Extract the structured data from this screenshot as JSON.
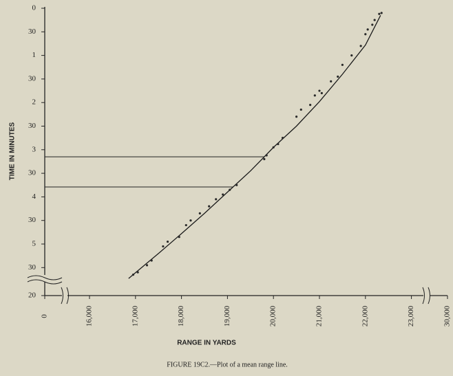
{
  "chart_data": {
    "type": "scatter",
    "caption": "FIGURE 19C2.—Plot of a mean range line.",
    "x_label": "RANGE IN YARDS",
    "y_label": "TIME IN MINUTES",
    "xlim": [
      0,
      30000
    ],
    "ylim": [
      0,
      20
    ],
    "xticks": [
      0,
      {
        "value": 16000,
        "label": "16,000"
      },
      {
        "value": 17000,
        "label": "17,000"
      },
      {
        "value": 18000,
        "label": "18,000"
      },
      {
        "value": 19000,
        "label": "19,000"
      },
      {
        "value": 20000,
        "label": "20,000"
      },
      {
        "value": 21000,
        "label": "21,000"
      },
      {
        "value": 22000,
        "label": "22,000"
      },
      {
        "value": 23000,
        "label": "23,000"
      },
      {
        "value": 30000,
        "label": "30,000"
      }
    ],
    "yticks": [
      0,
      {
        "value": 0.5,
        "label": "30"
      },
      1,
      {
        "value": 1.5,
        "label": "30"
      },
      2,
      {
        "value": 2.5,
        "label": "30"
      },
      3,
      {
        "value": 3.5,
        "label": "30"
      },
      4,
      {
        "value": 4.5,
        "label": "30"
      },
      5,
      {
        "value": 5.5,
        "label": "30"
      },
      20
    ],
    "series": [
      {
        "name": "mean range line",
        "kind": "line",
        "color": "#1a1a1a",
        "x": [
          16850,
          17500,
          18000,
          18500,
          19000,
          19500,
          20000,
          20500,
          21000,
          21500,
          22000,
          22330
        ],
        "values": [
          5.73,
          5.2,
          4.78,
          4.35,
          3.9,
          3.45,
          2.95,
          2.5,
          1.98,
          1.4,
          0.78,
          0.15
        ]
      },
      {
        "name": "observed",
        "kind": "scatter",
        "color": "#2a2a2a",
        "x": [
          16950,
          17050,
          17250,
          17350,
          17600,
          17700,
          17950,
          18100,
          18200,
          18400,
          18600,
          18750,
          18900,
          19050,
          19200,
          19800,
          19850,
          20000,
          20100,
          20200,
          20500,
          20600,
          20800,
          20900,
          21000,
          21050,
          21250,
          21400,
          21500,
          21700,
          21900,
          22000,
          22050,
          22150,
          22200,
          22300,
          22350
        ],
        "values": [
          5.65,
          5.6,
          5.45,
          5.35,
          5.05,
          4.95,
          4.85,
          4.6,
          4.5,
          4.35,
          4.2,
          4.05,
          3.95,
          3.85,
          3.75,
          3.2,
          3.12,
          2.95,
          2.88,
          2.75,
          2.3,
          2.15,
          2.05,
          1.85,
          1.75,
          1.8,
          1.55,
          1.45,
          1.2,
          1.0,
          0.8,
          0.55,
          0.45,
          0.35,
          0.25,
          0.12,
          0.1
        ]
      }
    ],
    "reference_y": [
      3.15,
      3.79
    ]
  }
}
